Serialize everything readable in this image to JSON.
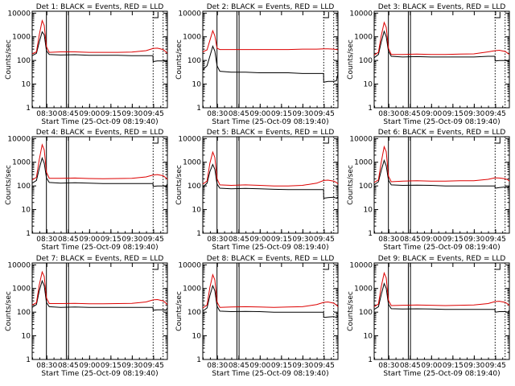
{
  "figure": {
    "ylabel": "Counts/sec",
    "xlabel": "Start Time (25-Oct-09 08:19:40)",
    "x_tick_labels": [
      "08:30",
      "08:45",
      "09:00",
      "09:15",
      "09:30",
      "09:45"
    ],
    "y_tick_labels": [
      "1",
      "10",
      "100",
      "1000",
      "10000"
    ],
    "colors": {
      "events": "#000000",
      "lld": "#dd0000",
      "frame": "#000000",
      "background": "#ffffff"
    }
  },
  "chart_data": [
    {
      "type": "line",
      "title": "Det 1: BLACK = Events, RED = LLD",
      "xlabel": "Start Time (25-Oct-09 08:19:40)",
      "ylabel": "Counts/sec",
      "x_unit": "minutes after 08:19:40",
      "xlim": [
        0,
        95
      ],
      "ylim": [
        1,
        12000
      ],
      "yscale": "log",
      "vertical_markers": [
        10,
        24,
        25.5,
        85,
        92
      ],
      "series": [
        {
          "name": "Events",
          "color": "#000000",
          "x": [
            0,
            3,
            5,
            7,
            8.5,
            10,
            12,
            20,
            30,
            40,
            50,
            60,
            70,
            80,
            84.9,
            85,
            88,
            92,
            94,
            95
          ],
          "y": [
            160,
            200,
            600,
            1600,
            1200,
            260,
            180,
            170,
            175,
            165,
            165,
            165,
            160,
            160,
            160,
            90,
            95,
            95,
            90,
            100
          ]
        },
        {
          "name": "LLD",
          "color": "#dd0000",
          "x": [
            0,
            3,
            5,
            7,
            8.5,
            10,
            12,
            20,
            30,
            40,
            50,
            60,
            70,
            80,
            85,
            88,
            92,
            94,
            95
          ],
          "y": [
            190,
            230,
            1200,
            4800,
            3000,
            380,
            220,
            230,
            230,
            220,
            220,
            220,
            225,
            260,
            320,
            330,
            290,
            230,
            200
          ]
        }
      ]
    },
    {
      "type": "line",
      "title": "Det 2: BLACK = Events, RED = LLD",
      "xlabel": "Start Time (25-Oct-09 08:19:40)",
      "ylabel": "Counts/sec",
      "x_unit": "minutes after 08:19:40",
      "xlim": [
        0,
        95
      ],
      "ylim": [
        1,
        12000
      ],
      "yscale": "log",
      "vertical_markers": [
        10,
        24,
        25.5,
        85,
        92
      ],
      "series": [
        {
          "name": "Events",
          "color": "#000000",
          "x": [
            0,
            3,
            5,
            7,
            8.5,
            10,
            12,
            20,
            30,
            40,
            50,
            60,
            70,
            80,
            84.9,
            85,
            88,
            92,
            94,
            95
          ],
          "y": [
            40,
            60,
            150,
            400,
            250,
            60,
            35,
            32,
            32,
            30,
            30,
            30,
            28,
            28,
            28,
            12,
            13,
            13,
            14,
            30
          ]
        },
        {
          "name": "LLD",
          "color": "#dd0000",
          "x": [
            0,
            3,
            5,
            7,
            8.5,
            10,
            12,
            20,
            30,
            40,
            50,
            60,
            70,
            80,
            85,
            88,
            92,
            94,
            95
          ],
          "y": [
            230,
            280,
            700,
            1800,
            1100,
            330,
            290,
            290,
            290,
            290,
            290,
            290,
            300,
            300,
            310,
            310,
            300,
            290,
            280
          ]
        }
      ]
    },
    {
      "type": "line",
      "title": "Det 3: BLACK = Events, RED = LLD",
      "xlabel": "Start Time (25-Oct-09 08:19:40)",
      "ylabel": "Counts/sec",
      "x_unit": "minutes after 08:19:40",
      "xlim": [
        0,
        95
      ],
      "ylim": [
        1,
        12000
      ],
      "yscale": "log",
      "vertical_markers": [
        10,
        24,
        25.5,
        85,
        92
      ],
      "series": [
        {
          "name": "Events",
          "color": "#000000",
          "x": [
            0,
            3,
            5,
            7,
            8.5,
            10,
            12,
            20,
            30,
            40,
            50,
            60,
            70,
            80,
            84.9,
            85,
            88,
            92,
            94,
            95
          ],
          "y": [
            130,
            180,
            600,
            1700,
            1000,
            250,
            150,
            140,
            145,
            140,
            140,
            140,
            140,
            150,
            150,
            95,
            100,
            100,
            95,
            110
          ]
        },
        {
          "name": "LLD",
          "color": "#dd0000",
          "x": [
            0,
            3,
            5,
            7,
            8.5,
            10,
            12,
            20,
            30,
            40,
            50,
            60,
            70,
            80,
            85,
            88,
            92,
            94,
            95
          ],
          "y": [
            170,
            220,
            1100,
            4000,
            2500,
            330,
            180,
            180,
            185,
            180,
            180,
            185,
            190,
            230,
            260,
            270,
            240,
            200,
            180
          ]
        }
      ]
    },
    {
      "type": "line",
      "title": "Det 4: BLACK = Events, RED = LLD",
      "xlabel": "Start Time (25-Oct-09 08:19:40)",
      "ylabel": "Counts/sec",
      "x_unit": "minutes after 08:19:40",
      "xlim": [
        0,
        95
      ],
      "ylim": [
        1,
        12000
      ],
      "yscale": "log",
      "vertical_markers": [
        10,
        24,
        25.5,
        85,
        92
      ],
      "series": [
        {
          "name": "Events",
          "color": "#000000",
          "x": [
            0,
            3,
            5,
            7,
            8.5,
            10,
            12,
            20,
            30,
            40,
            50,
            60,
            70,
            80,
            84.9,
            85,
            88,
            92,
            94,
            95
          ],
          "y": [
            130,
            170,
            550,
            1500,
            900,
            220,
            140,
            130,
            135,
            130,
            125,
            125,
            125,
            125,
            125,
            95,
            100,
            100,
            95,
            120
          ]
        },
        {
          "name": "LLD",
          "color": "#dd0000",
          "x": [
            0,
            3,
            5,
            7,
            8.5,
            10,
            12,
            20,
            30,
            40,
            50,
            60,
            70,
            80,
            85,
            88,
            92,
            94,
            95
          ],
          "y": [
            180,
            230,
            1300,
            5500,
            3300,
            380,
            210,
            210,
            215,
            205,
            200,
            205,
            210,
            240,
            290,
            300,
            270,
            220,
            190
          ]
        }
      ]
    },
    {
      "type": "line",
      "title": "Det 5: BLACK = Events, RED = LLD",
      "xlabel": "Start Time (25-Oct-09 08:19:40)",
      "ylabel": "Counts/sec",
      "x_unit": "minutes after 08:19:40",
      "xlim": [
        0,
        95
      ],
      "ylim": [
        1,
        12000
      ],
      "yscale": "log",
      "vertical_markers": [
        10,
        24,
        25.5,
        85,
        92
      ],
      "series": [
        {
          "name": "Events",
          "color": "#000000",
          "x": [
            0,
            3,
            5,
            7,
            8.5,
            10,
            12,
            20,
            30,
            40,
            50,
            60,
            70,
            80,
            84.9,
            85,
            88,
            92,
            94,
            95
          ],
          "y": [
            90,
            130,
            400,
            800,
            500,
            120,
            80,
            75,
            78,
            75,
            72,
            70,
            70,
            70,
            70,
            30,
            32,
            33,
            30,
            35
          ]
        },
        {
          "name": "LLD",
          "color": "#dd0000",
          "x": [
            0,
            3,
            5,
            7,
            8.5,
            10,
            12,
            20,
            30,
            40,
            50,
            60,
            70,
            80,
            85,
            88,
            92,
            94,
            95
          ],
          "y": [
            120,
            160,
            900,
            2700,
            1600,
            200,
            110,
            105,
            110,
            105,
            100,
            100,
            105,
            130,
            170,
            175,
            160,
            140,
            120
          ]
        }
      ]
    },
    {
      "type": "line",
      "title": "Det 6: BLACK = Events, RED = LLD",
      "xlabel": "Start Time (25-Oct-09 08:19:40)",
      "ylabel": "Counts/sec",
      "x_unit": "minutes after 08:19:40",
      "xlim": [
        0,
        95
      ],
      "ylim": [
        1,
        12000
      ],
      "yscale": "log",
      "vertical_markers": [
        10,
        24,
        25.5,
        85,
        92
      ],
      "series": [
        {
          "name": "Events",
          "color": "#000000",
          "x": [
            0,
            3,
            5,
            7,
            8.5,
            10,
            12,
            20,
            30,
            40,
            50,
            60,
            70,
            80,
            84.9,
            85,
            88,
            92,
            94,
            95
          ],
          "y": [
            110,
            150,
            450,
            1200,
            700,
            180,
            110,
            105,
            108,
            105,
            100,
            100,
            100,
            100,
            100,
            80,
            85,
            90,
            85,
            100
          ]
        },
        {
          "name": "LLD",
          "color": "#dd0000",
          "x": [
            0,
            3,
            5,
            7,
            8.5,
            10,
            12,
            20,
            30,
            40,
            50,
            60,
            70,
            80,
            85,
            88,
            92,
            94,
            95
          ],
          "y": [
            140,
            180,
            1000,
            4500,
            2800,
            260,
            150,
            160,
            165,
            160,
            160,
            165,
            165,
            190,
            220,
            215,
            200,
            180,
            160
          ]
        }
      ]
    },
    {
      "type": "line",
      "title": "Det 7: BLACK = Events, RED = LLD",
      "xlabel": "Start Time (25-Oct-09 08:19:40)",
      "ylabel": "Counts/sec",
      "x_unit": "minutes after 08:19:40",
      "xlim": [
        0,
        95
      ],
      "ylim": [
        1,
        12000
      ],
      "yscale": "log",
      "vertical_markers": [
        10,
        24,
        25.5,
        85,
        92
      ],
      "series": [
        {
          "name": "Events",
          "color": "#000000",
          "x": [
            0,
            3,
            5,
            7,
            8.5,
            10,
            12,
            20,
            30,
            40,
            50,
            60,
            70,
            80,
            84.9,
            85,
            88,
            92,
            94,
            95
          ],
          "y": [
            160,
            210,
            800,
            2100,
            1300,
            260,
            170,
            160,
            165,
            160,
            160,
            160,
            160,
            160,
            160,
            120,
            125,
            125,
            120,
            150
          ]
        },
        {
          "name": "LLD",
          "color": "#dd0000",
          "x": [
            0,
            3,
            5,
            7,
            8.5,
            10,
            12,
            20,
            30,
            40,
            50,
            60,
            70,
            80,
            85,
            88,
            92,
            94,
            95
          ],
          "y": [
            200,
            250,
            1400,
            5000,
            3200,
            400,
            230,
            230,
            235,
            225,
            225,
            230,
            235,
            270,
            330,
            340,
            300,
            240,
            210
          ]
        }
      ]
    },
    {
      "type": "line",
      "title": "Det 8: BLACK = Events, RED = LLD",
      "xlabel": "Start Time (25-Oct-09 08:19:40)",
      "ylabel": "Counts/sec",
      "x_unit": "minutes after 08:19:40",
      "xlim": [
        0,
        95
      ],
      "ylim": [
        1,
        12000
      ],
      "yscale": "log",
      "vertical_markers": [
        10,
        24,
        25.5,
        85,
        92
      ],
      "series": [
        {
          "name": "Events",
          "color": "#000000",
          "x": [
            0,
            3,
            5,
            7,
            8.5,
            10,
            12,
            20,
            30,
            40,
            50,
            60,
            70,
            80,
            84.9,
            85,
            88,
            92,
            94,
            95
          ],
          "y": [
            110,
            150,
            500,
            1300,
            800,
            180,
            110,
            105,
            108,
            105,
            100,
            100,
            100,
            100,
            100,
            60,
            62,
            65,
            60,
            70
          ]
        },
        {
          "name": "LLD",
          "color": "#dd0000",
          "x": [
            0,
            3,
            5,
            7,
            8.5,
            10,
            12,
            20,
            30,
            40,
            50,
            60,
            70,
            80,
            85,
            88,
            92,
            94,
            95
          ],
          "y": [
            150,
            200,
            1100,
            3800,
            2300,
            270,
            160,
            165,
            170,
            165,
            160,
            165,
            170,
            210,
            260,
            270,
            240,
            200,
            170
          ]
        }
      ]
    },
    {
      "type": "line",
      "title": "Det 9: BLACK = Events, RED = LLD",
      "xlabel": "Start Time (25-Oct-09 08:19:40)",
      "ylabel": "Counts/sec",
      "x_unit": "minutes after 08:19:40",
      "xlim": [
        0,
        95
      ],
      "ylim": [
        1,
        12000
      ],
      "yscale": "log",
      "vertical_markers": [
        10,
        24,
        25.5,
        85,
        92
      ],
      "series": [
        {
          "name": "Events",
          "color": "#000000",
          "x": [
            0,
            3,
            5,
            7,
            8.5,
            10,
            12,
            20,
            30,
            40,
            50,
            60,
            70,
            80,
            84.9,
            85,
            88,
            92,
            94,
            95
          ],
          "y": [
            130,
            170,
            550,
            1600,
            1000,
            220,
            140,
            135,
            138,
            135,
            130,
            130,
            130,
            130,
            130,
            100,
            105,
            105,
            100,
            120
          ]
        },
        {
          "name": "LLD",
          "color": "#dd0000",
          "x": [
            0,
            3,
            5,
            7,
            8.5,
            10,
            12,
            20,
            30,
            40,
            50,
            60,
            70,
            80,
            85,
            88,
            92,
            94,
            95
          ],
          "y": [
            170,
            220,
            1200,
            4500,
            2800,
            320,
            190,
            195,
            200,
            195,
            190,
            195,
            200,
            230,
            280,
            290,
            260,
            220,
            190
          ]
        }
      ]
    }
  ]
}
